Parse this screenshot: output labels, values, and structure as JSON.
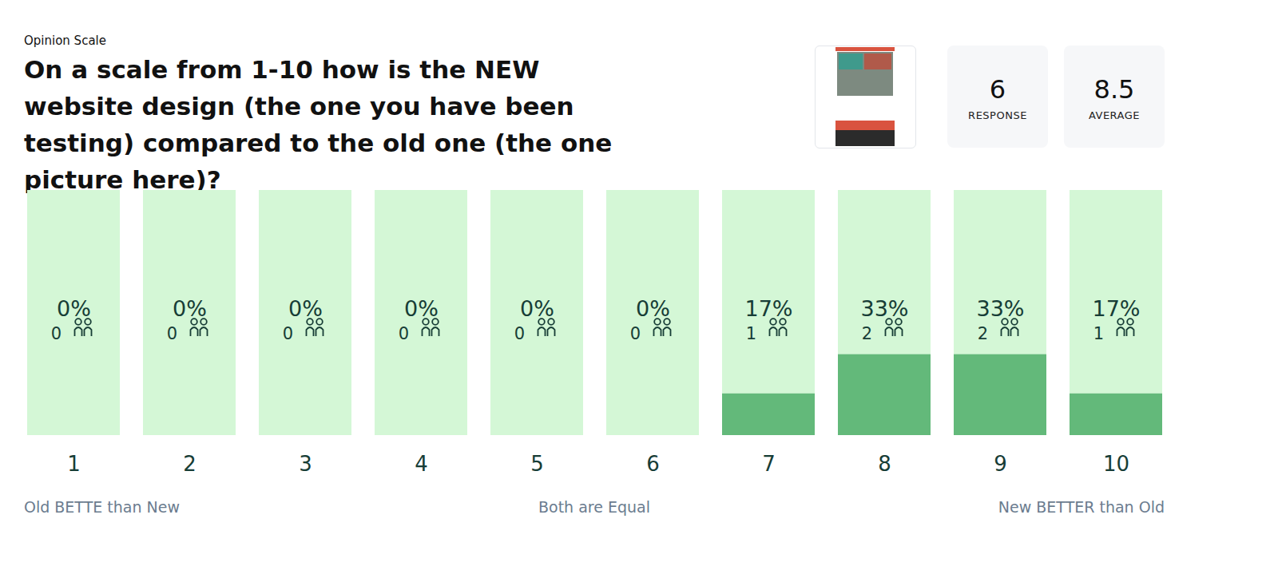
{
  "chart_data": {
    "type": "bar",
    "subtitle": "Opinion Scale",
    "title": "On a scale from 1-10 how is the NEW website design (the one you have been testing) compared to the old one (the one picture here)?",
    "categories": [
      "1",
      "2",
      "3",
      "4",
      "5",
      "6",
      "7",
      "8",
      "9",
      "10"
    ],
    "values": [
      0,
      0,
      0,
      0,
      0,
      0,
      17,
      33,
      33,
      17
    ],
    "value_labels": [
      "0%",
      "0%",
      "0%",
      "0%",
      "0%",
      "0%",
      "17%",
      "33%",
      "33%",
      "17%"
    ],
    "counts": [
      0,
      0,
      0,
      0,
      0,
      0,
      1,
      2,
      2,
      1
    ],
    "summary": [
      {
        "value": 6,
        "label": "RESPONSE"
      },
      {
        "value": 8.5,
        "label": "AVERAGE"
      }
    ],
    "scale_labels": [
      "Old BETTE than New",
      "Both are Equal",
      "New BETTER than Old"
    ],
    "ylim": [
      0,
      100
    ],
    "color": "#63b97a",
    "data_labels": true,
    "tick_labels": "x",
    "grid": false
  }
}
